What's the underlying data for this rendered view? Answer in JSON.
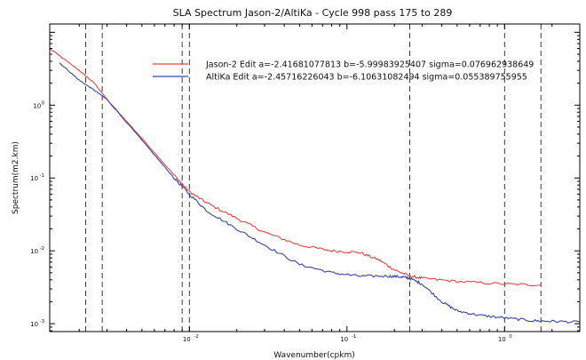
{
  "chart_data": {
    "type": "line",
    "title": "SLA Spectrum Jason-2/AltiKa - Cycle 998 pass 175 to 289",
    "xlabel": "Wavenumber(cpkm)",
    "ylabel": "Spectrum(m2.km)",
    "xscale": "log",
    "yscale": "log",
    "xlim": [
      0.0013,
      3.0
    ],
    "ylim": [
      0.00078,
      13
    ],
    "x_ticks": [
      {
        "value": 0.01,
        "base": "10",
        "exp": "-2"
      },
      {
        "value": 0.1,
        "base": "10",
        "exp": "-1"
      },
      {
        "value": 1,
        "base": "10",
        "exp": "0"
      }
    ],
    "y_ticks": [
      {
        "value": 0.001,
        "base": "10",
        "exp": "-3"
      },
      {
        "value": 0.01,
        "base": "10",
        "exp": "-2"
      },
      {
        "value": 0.1,
        "base": "10",
        "exp": "-1"
      },
      {
        "value": 1,
        "base": "10",
        "exp": "0"
      }
    ],
    "vertical_lines": [
      0.0022,
      0.0028,
      0.009,
      0.01,
      0.25,
      1.0,
      1.7
    ],
    "legend_position": "top-right",
    "series": [
      {
        "name": "Jason-2 Edit   a=-2.41681077813 b=-5.99983925407   sigma=0.076962938649",
        "color": "#e8433f",
        "x": [
          0.0013,
          0.002,
          0.0025,
          0.003,
          0.005,
          0.008,
          0.01,
          0.013,
          0.02,
          0.03,
          0.05,
          0.08,
          0.12,
          0.16,
          0.2,
          0.25,
          0.3,
          0.5,
          1.0,
          1.7
        ],
        "y": [
          6.0,
          3.0,
          2.0,
          1.2,
          0.35,
          0.11,
          0.065,
          0.045,
          0.028,
          0.018,
          0.012,
          0.01,
          0.0095,
          0.0075,
          0.0055,
          0.0045,
          0.0042,
          0.0038,
          0.0035,
          0.0034
        ]
      },
      {
        "name": "AltiKa Edit  a=-2.45716226043 b=-6.10631082494   sigma=0.055389755955",
        "color": "#3745a6",
        "x": [
          0.0015,
          0.002,
          0.0025,
          0.003,
          0.005,
          0.008,
          0.01,
          0.013,
          0.02,
          0.03,
          0.05,
          0.08,
          0.12,
          0.18,
          0.22,
          0.25,
          0.3,
          0.4,
          0.5,
          0.7,
          1.0,
          1.5,
          2.0,
          3.0
        ],
        "y": [
          3.8,
          2.2,
          1.6,
          1.2,
          0.33,
          0.1,
          0.06,
          0.035,
          0.02,
          0.012,
          0.0065,
          0.005,
          0.0045,
          0.0045,
          0.0044,
          0.0042,
          0.0035,
          0.002,
          0.0015,
          0.0013,
          0.0012,
          0.0011,
          0.00108,
          0.00105
        ]
      }
    ]
  }
}
